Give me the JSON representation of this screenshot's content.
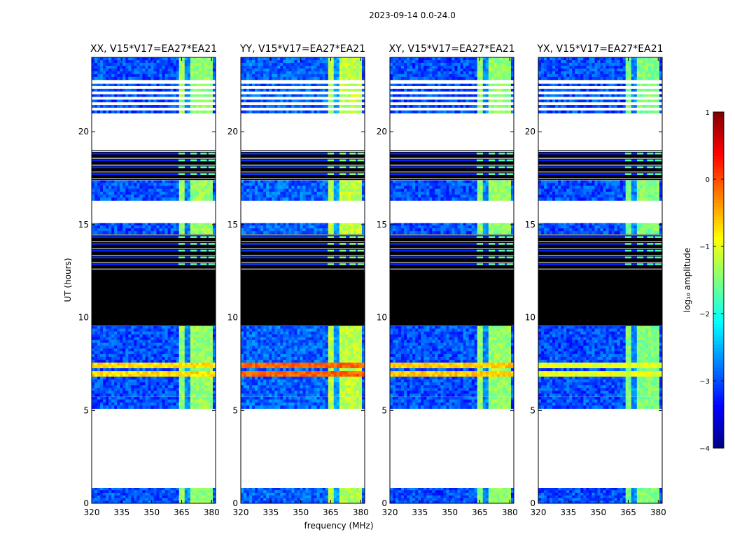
{
  "chart_data": {
    "type": "heatmap",
    "suptitle": "2023-09-14 0.0-24.0",
    "xlabel": "frequency (MHz)",
    "ylabel": "UT (hours)",
    "xlim": [
      320,
      382
    ],
    "ylim": [
      0,
      24
    ],
    "xticks": [
      320,
      335,
      350,
      365,
      380
    ],
    "yticks": [
      0,
      5,
      10,
      15,
      20
    ],
    "colorbar": {
      "label": "log₁₀ amplitude",
      "min": -4,
      "max": 1,
      "ticks": [
        -4,
        -3,
        -2,
        -1,
        0,
        1
      ],
      "colormap": "jet"
    },
    "panels": [
      {
        "title": "XX, V15*V17=EA27*EA21",
        "rfi_band_MHz": [
          363,
          380
        ],
        "rfi_level": -1.4,
        "background_level": -3.0,
        "strong_line_level": -0.3
      },
      {
        "title": "YY, V15*V17=EA27*EA21",
        "rfi_band_MHz": [
          363,
          380
        ],
        "rfi_level": -1.2,
        "background_level": -2.9,
        "strong_line_level": 0.3
      },
      {
        "title": "XY, V15*V17=EA27*EA21",
        "rfi_band_MHz": [
          363,
          380
        ],
        "rfi_level": -1.4,
        "background_level": -3.0,
        "strong_line_level": -0.2
      },
      {
        "title": "YX, V15*V17=EA27*EA21",
        "rfi_band_MHz": [
          363,
          380
        ],
        "rfi_level": -1.5,
        "background_level": -3.0,
        "strong_line_level": -0.6
      }
    ],
    "segments_UT_hours": [
      {
        "from": 0.0,
        "to": 0.85,
        "kind": "data"
      },
      {
        "from": 0.85,
        "to": 5.1,
        "kind": "empty"
      },
      {
        "from": 5.1,
        "to": 5.75,
        "kind": "data"
      },
      {
        "from": 5.75,
        "to": 9.55,
        "kind": "data"
      },
      {
        "from": 9.55,
        "to": 12.55,
        "kind": "flagged"
      },
      {
        "from": 12.55,
        "to": 14.5,
        "kind": "flagged_lines"
      },
      {
        "from": 14.5,
        "to": 15.1,
        "kind": "data"
      },
      {
        "from": 15.1,
        "to": 16.3,
        "kind": "empty"
      },
      {
        "from": 16.3,
        "to": 17.4,
        "kind": "data"
      },
      {
        "from": 17.4,
        "to": 19.0,
        "kind": "flagged_lines"
      },
      {
        "from": 19.0,
        "to": 21.0,
        "kind": "empty"
      },
      {
        "from": 21.0,
        "to": 22.6,
        "kind": "data_lines"
      },
      {
        "from": 22.6,
        "to": 22.8,
        "kind": "empty"
      },
      {
        "from": 22.8,
        "to": 24.0,
        "kind": "data"
      }
    ],
    "strong_line_UT_hours": [
      7.0,
      7.4
    ],
    "rfi_channel_centers_MHz": [
      365,
      371,
      376,
      380
    ]
  }
}
